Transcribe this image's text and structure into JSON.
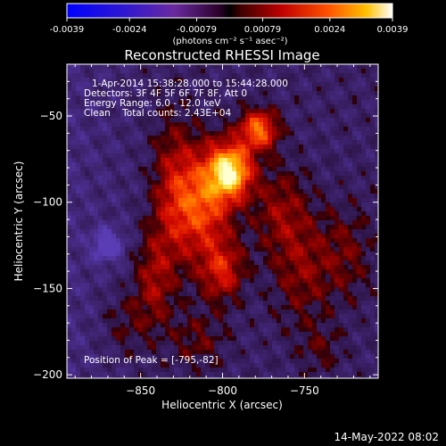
{
  "chart_data": {
    "type": "heatmap",
    "title": "Reconstructed RHESSI Image",
    "xlabel": "Heliocentric X (arcsec)",
    "ylabel": "Heliocentric Y (arcsec)",
    "xlim": [
      -895,
      -705
    ],
    "ylim": [
      -202,
      -20
    ],
    "xticks": [
      -850,
      -800,
      -750
    ],
    "yticks": [
      -50,
      -100,
      -150,
      -200
    ],
    "colorbar": {
      "min": -0.0039,
      "max": 0.0039,
      "ticks": [
        "-0.0039",
        "-0.0024",
        "-0.00079",
        "0.00079",
        "0.0024",
        "0.0039"
      ],
      "units_label": "(photons cm⁻² s⁻¹ asec⁻²)"
    },
    "annotations": [
      "1-Apr-2014 15:38:28.000 to 15:44:28.000",
      "Detectors: 3F 4F 5F 6F 7F 8F, Att 0",
      "Energy Range: 6.0 - 12.0 keV",
      "Clean    Total counts: 2.43E+04"
    ],
    "peak_label": "Position of Peak = [-795,-82]",
    "peak": [
      -795,
      -82
    ],
    "sources": [
      {
        "x": -795,
        "y": -82,
        "sx": 9,
        "sy": 11,
        "amp": 1.0
      },
      {
        "x": -778,
        "y": -58,
        "sx": 8,
        "sy": 8,
        "amp": 0.72
      },
      {
        "x": -812,
        "y": -100,
        "sx": 12,
        "sy": 22,
        "amp": 0.62
      },
      {
        "x": -800,
        "y": -140,
        "sx": 9,
        "sy": 12,
        "amp": 0.45
      },
      {
        "x": -830,
        "y": -95,
        "sx": 9,
        "sy": 30,
        "amp": 0.34
      },
      {
        "x": -842,
        "y": -145,
        "sx": 8,
        "sy": 20,
        "amp": 0.32
      },
      {
        "x": -765,
        "y": -105,
        "sx": 12,
        "sy": 18,
        "amp": 0.28
      },
      {
        "x": -752,
        "y": -140,
        "sx": 12,
        "sy": 22,
        "amp": 0.26
      },
      {
        "x": -725,
        "y": -130,
        "sx": 12,
        "sy": 20,
        "amp": 0.22
      },
      {
        "x": -860,
        "y": -170,
        "sx": 10,
        "sy": 14,
        "amp": 0.18
      },
      {
        "x": -815,
        "y": -180,
        "sx": 12,
        "sy": 12,
        "amp": 0.2
      },
      {
        "x": -740,
        "y": -185,
        "sx": 10,
        "sy": 10,
        "amp": 0.15
      },
      {
        "x": -870,
        "y": -125,
        "sx": 6,
        "sy": 6,
        "amp": -0.5
      }
    ]
  },
  "footer_date": "14-May-2022 08:02"
}
